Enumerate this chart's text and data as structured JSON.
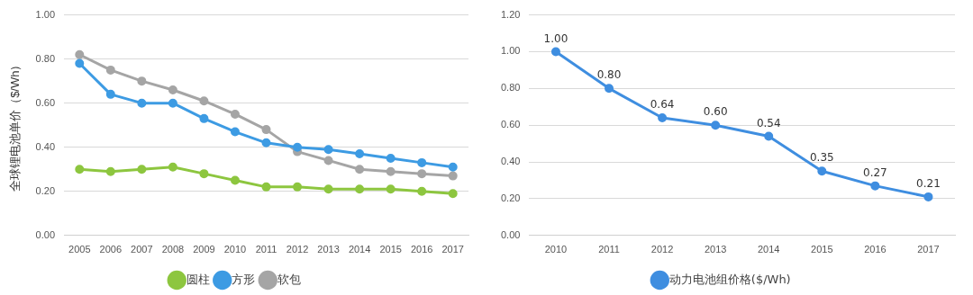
{
  "chart_data": [
    {
      "type": "line",
      "ylabel": "全球锂电池单价（$/Wh）",
      "categories": [
        "2005",
        "2006",
        "2007",
        "2008",
        "2009",
        "2010",
        "2011",
        "2012",
        "2013",
        "2014",
        "2015",
        "2016",
        "2017"
      ],
      "series": [
        {
          "name": "圆柱",
          "color": "#8dc63f",
          "values": [
            0.3,
            0.29,
            0.3,
            0.31,
            0.28,
            0.25,
            0.22,
            0.22,
            0.21,
            0.21,
            0.21,
            0.2,
            0.19
          ]
        },
        {
          "name": "方形",
          "color": "#3d9be3",
          "values": [
            0.78,
            0.64,
            0.6,
            0.6,
            0.53,
            0.47,
            0.42,
            0.4,
            0.39,
            0.37,
            0.35,
            0.33,
            0.31
          ]
        },
        {
          "name": "软包",
          "color": "#a5a5a5",
          "values": [
            0.82,
            0.75,
            0.7,
            0.66,
            0.61,
            0.55,
            0.48,
            0.38,
            0.34,
            0.3,
            0.29,
            0.28,
            0.27
          ]
        }
      ],
      "ylim": [
        0,
        1
      ],
      "yticks": [
        {
          "value": 0,
          "label": "0.00"
        },
        {
          "value": 0.2,
          "label": "0.20"
        },
        {
          "value": 0.4,
          "label": "0.40"
        },
        {
          "value": 0.6,
          "label": "0.60"
        },
        {
          "value": 0.8,
          "label": "0.80"
        },
        {
          "value": 1,
          "label": "1.00"
        }
      ],
      "grid": "y",
      "legend": "bottom",
      "marker": "circle",
      "line_style": "solid"
    },
    {
      "type": "line",
      "categories": [
        "2010",
        "2011",
        "2012",
        "2013",
        "2014",
        "2015",
        "2016",
        "2017"
      ],
      "series": [
        {
          "name": "动力电池组价格($/Wh)",
          "color": "#3f8ee0",
          "values": [
            1.0,
            0.8,
            0.64,
            0.6,
            0.54,
            0.35,
            0.27,
            0.21
          ],
          "value_labels": [
            "1.00",
            "0.80",
            "0.64",
            "0.60",
            "0.54",
            "0.35",
            "0.27",
            "0.21"
          ]
        }
      ],
      "ylim": [
        0,
        1.2
      ],
      "yticks": [
        {
          "value": 0,
          "label": "0.00"
        },
        {
          "value": 0.2,
          "label": "0.20"
        },
        {
          "value": 0.4,
          "label": "0.40"
        },
        {
          "value": 0.6,
          "label": "0.60"
        },
        {
          "value": 0.8,
          "label": "0.80"
        },
        {
          "value": 1,
          "label": "1.00"
        },
        {
          "value": 1.2,
          "label": "1.20"
        }
      ],
      "grid": "y",
      "legend": "bottom",
      "marker": "circle",
      "line_style": "solid"
    }
  ]
}
